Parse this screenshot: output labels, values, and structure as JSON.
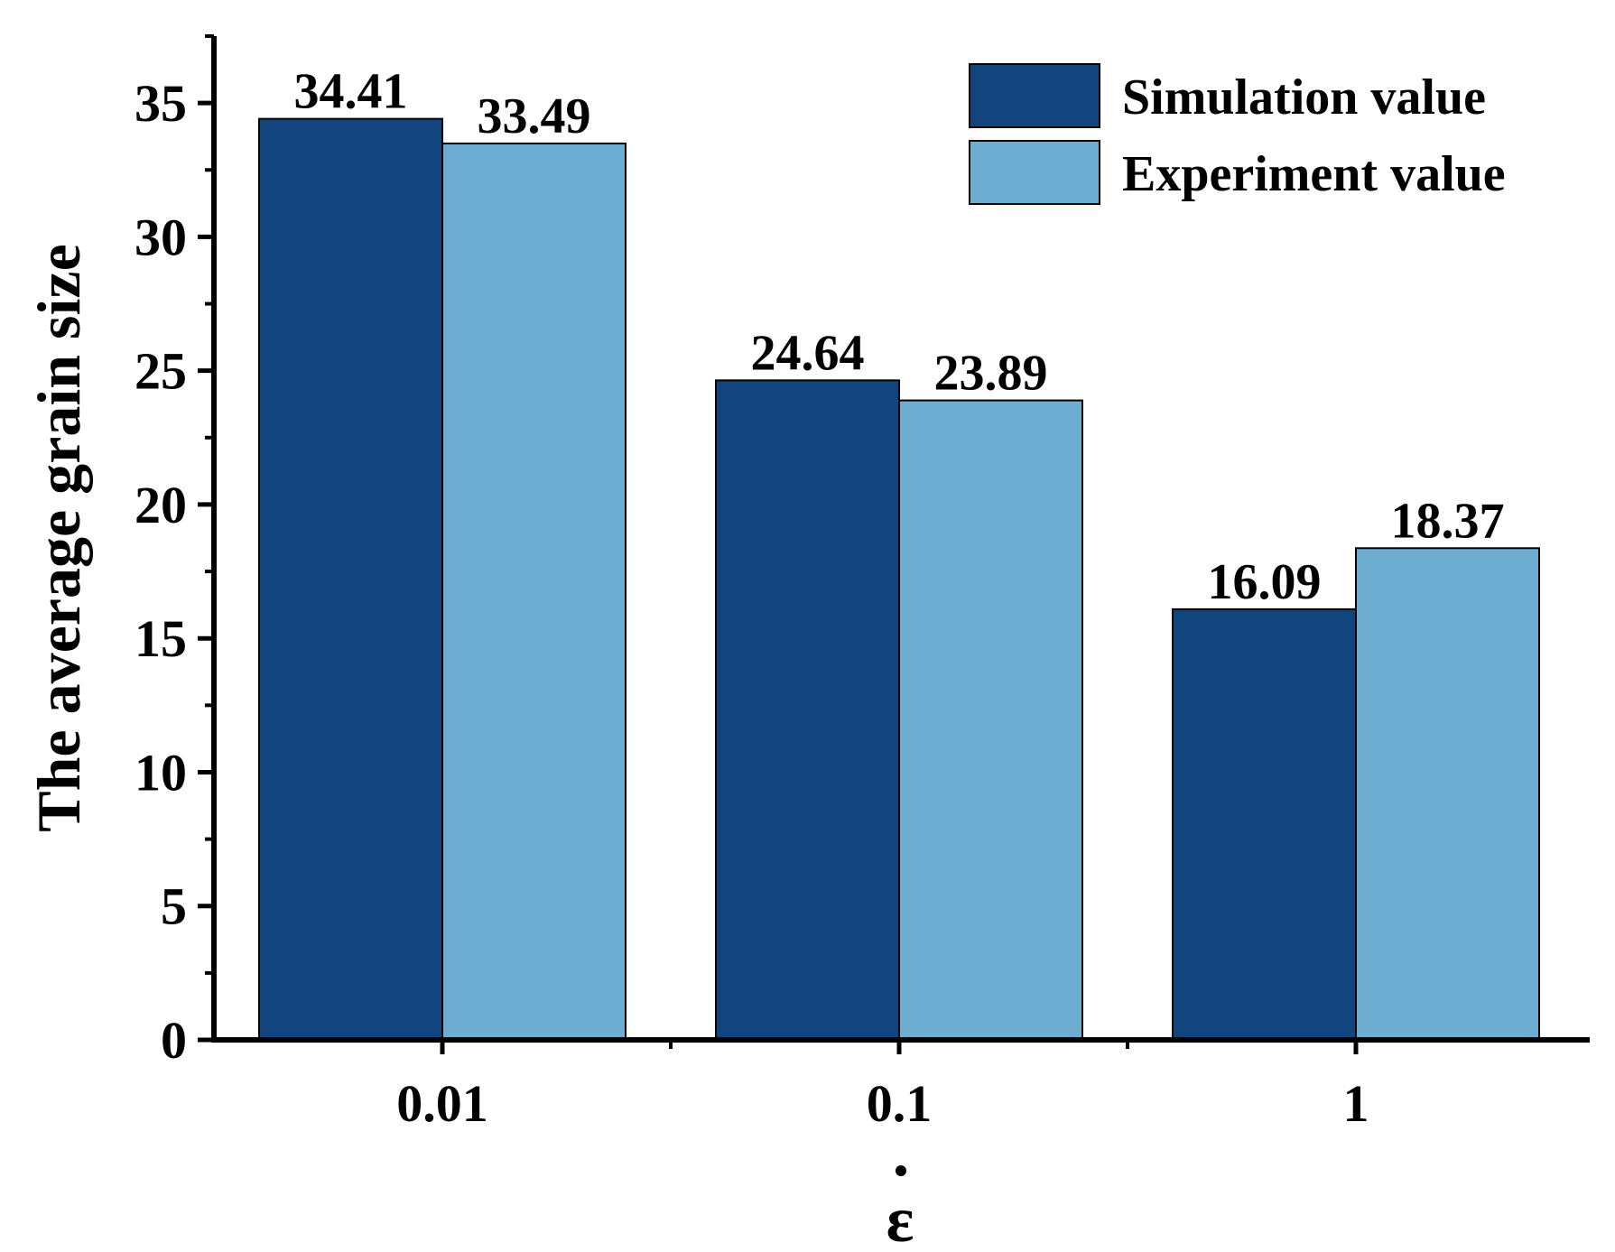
{
  "chart_data": {
    "type": "bar",
    "title": "",
    "xlabel": "ε̇",
    "xlabel_symbol": "ε",
    "ylabel": "The average grain size",
    "categories": [
      "0.01",
      "0.1",
      "1"
    ],
    "series": [
      {
        "name": "Simulation value",
        "color": "#12457e",
        "values": [
          34.41,
          24.64,
          16.09
        ],
        "labels": [
          "34.41",
          "24.64",
          "16.09"
        ]
      },
      {
        "name": "Experiment value",
        "color": "#6eadd2",
        "values": [
          33.49,
          23.89,
          18.37
        ],
        "labels": [
          "33.49",
          "23.89",
          "18.37"
        ]
      }
    ],
    "ylim": [
      0,
      37.5
    ],
    "yticks": [
      0,
      5,
      10,
      15,
      20,
      25,
      30,
      35
    ],
    "ytick_labels": [
      "0",
      "5",
      "10",
      "15",
      "20",
      "25",
      "30",
      "35"
    ],
    "grid": false,
    "legend_position": "top-right"
  }
}
